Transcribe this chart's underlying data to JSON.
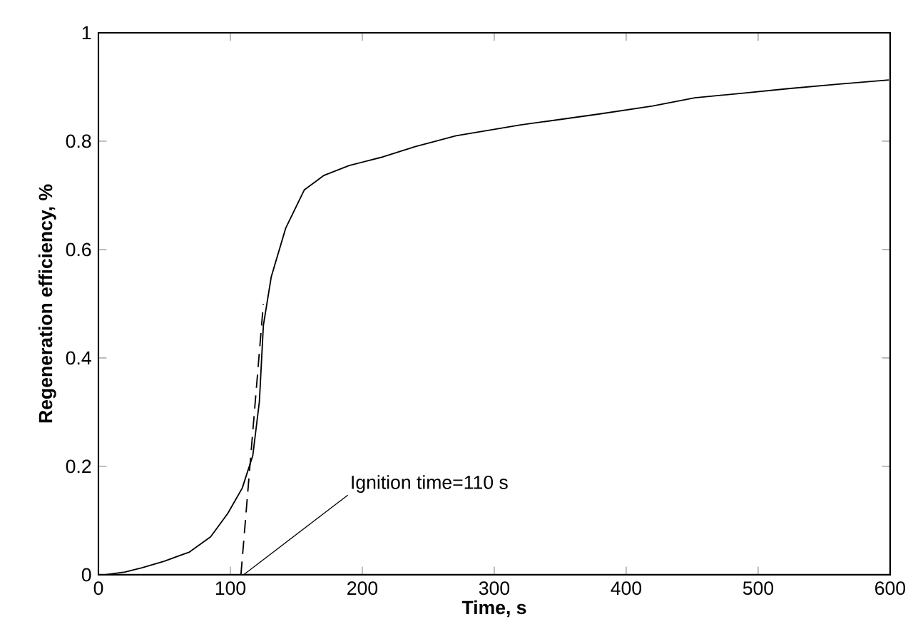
{
  "chart_data": {
    "type": "line",
    "xlabel": "Time, s",
    "ylabel": "Regeneration efficiency, %",
    "xlim": [
      0,
      600
    ],
    "ylim": [
      0,
      1
    ],
    "xticks": [
      0,
      100,
      200,
      300,
      400,
      500,
      600
    ],
    "yticks": [
      0,
      0.2,
      0.4,
      0.6,
      0.8,
      1
    ],
    "grid": false,
    "marker": "none",
    "series": [
      {
        "color": "#000000",
        "line_style": "solid",
        "x": [
          5,
          20,
          33,
          50,
          69,
          85,
          98,
          109,
          117,
          122,
          125,
          131,
          142,
          156,
          171,
          190,
          214,
          240,
          271,
          320,
          379,
          420,
          452,
          490,
          523,
          560,
          599
        ],
        "values": [
          0,
          0.005,
          0.013,
          0.025,
          0.042,
          0.07,
          0.113,
          0.16,
          0.22,
          0.32,
          0.46,
          0.55,
          0.64,
          0.71,
          0.737,
          0.755,
          0.77,
          0.79,
          0.81,
          0.83,
          0.85,
          0.865,
          0.88,
          0.889,
          0.897,
          0.905,
          0.913
        ]
      },
      {
        "type": "line",
        "color": "#000000",
        "line_style": "dashed",
        "x": [
          108,
          125
        ],
        "values": [
          0,
          0.5
        ]
      }
    ],
    "annotations": [
      {
        "text": "Ignition time=110 s",
        "x": 110,
        "y": 0
      }
    ]
  }
}
